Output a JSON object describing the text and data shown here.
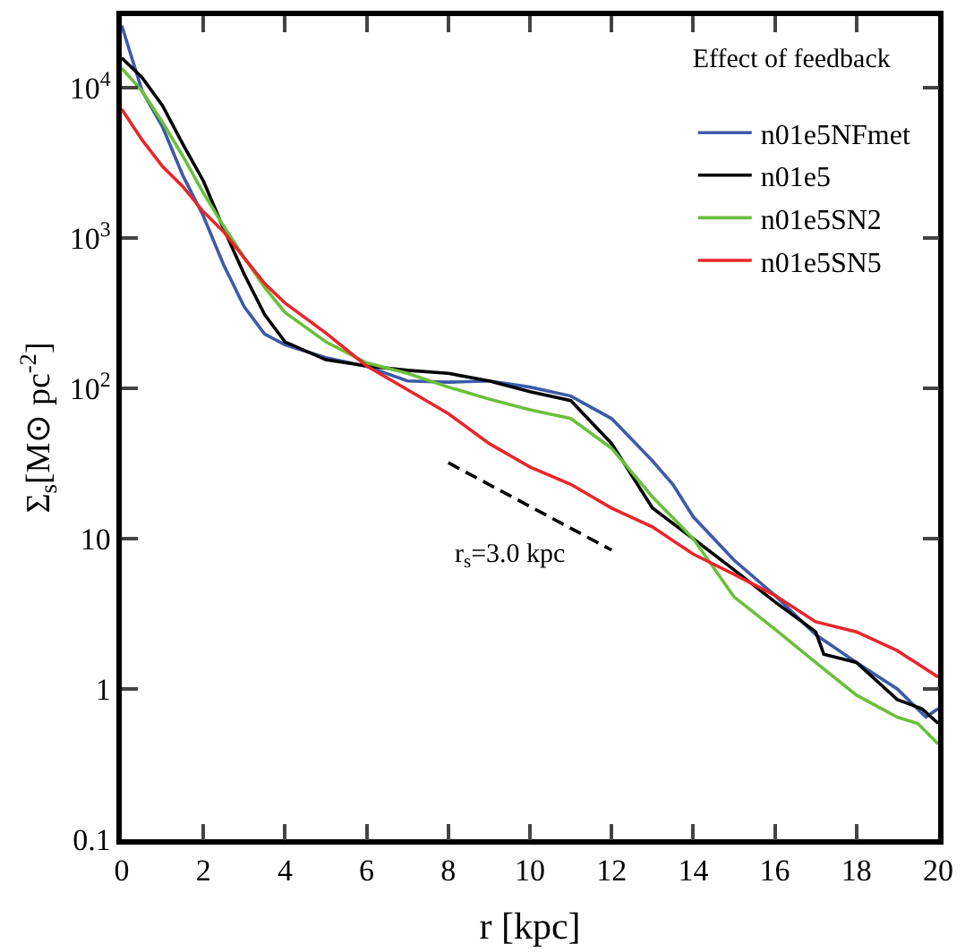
{
  "chart_data": {
    "type": "line",
    "xlabel": "r [kpc]",
    "ylabel": "Σ$_{s}$[M⊙ pc$^{-2}$]",
    "legend_title": "Effect of feedback",
    "legend": "top right",
    "grid": false,
    "log": "y",
    "marker": "none",
    "xlim": [
      0,
      20
    ],
    "xticks": [
      0,
      2,
      4,
      6,
      8,
      10,
      12,
      14,
      16,
      18,
      20
    ],
    "ylim": [
      0.1,
      30000
    ],
    "yticks": [
      0.1,
      1,
      10,
      {
        "value": 100,
        "label": "10$^{2}$"
      },
      {
        "value": 1000,
        "label": "10$^{3}$"
      },
      {
        "value": 10000,
        "label": "10$^{4}$"
      }
    ],
    "annotations": [
      "r$_{s}$=3.0 kpc"
    ],
    "series": [
      {
        "name": "n01e5NFmet",
        "color": "#3c5aa8",
        "line_style": "solid",
        "x": [
          0,
          0.5,
          1,
          1.5,
          2,
          2.5,
          3,
          3.5,
          4,
          5,
          6,
          7,
          8,
          9,
          10,
          11,
          12,
          13,
          13.5,
          14,
          15,
          16,
          17,
          18,
          19,
          19.7,
          20
        ],
        "values": [
          26000,
          9500,
          5500,
          2600,
          1400,
          660,
          350,
          230,
          195,
          160,
          140,
          112,
          110,
          112,
          102,
          89,
          63,
          33,
          23,
          14,
          7.2,
          4.2,
          2.3,
          1.5,
          1.0,
          0.65,
          0.74
        ]
      },
      {
        "name": "n01e5",
        "color": "#000000",
        "line_style": "solid",
        "x": [
          0,
          0.5,
          1,
          1.5,
          2,
          2.5,
          3,
          3.5,
          4,
          5,
          6,
          7,
          8,
          9,
          10,
          11,
          12,
          13,
          14,
          15,
          16,
          17,
          17.2,
          18,
          19,
          19.6,
          20
        ],
        "values": [
          15800,
          11700,
          7600,
          4200,
          2400,
          1150,
          575,
          310,
          204,
          155,
          141,
          132,
          126,
          112,
          95,
          83,
          43,
          16,
          10,
          6.2,
          3.8,
          2.4,
          1.7,
          1.5,
          0.85,
          0.74,
          0.59
        ]
      },
      {
        "name": "n01e5SN2",
        "color": "#6cbf3c",
        "line_style": "solid",
        "x": [
          0,
          0.5,
          1,
          1.5,
          2,
          2.5,
          3,
          3.5,
          4,
          5,
          6,
          7,
          8,
          9,
          10,
          11,
          12,
          13,
          14,
          15,
          16,
          17,
          18,
          19,
          19.5,
          20
        ],
        "values": [
          13500,
          9500,
          5900,
          3500,
          2000,
          1200,
          740,
          470,
          320,
          204,
          148,
          126,
          102,
          85,
          72,
          63,
          40,
          19,
          10,
          4.1,
          2.5,
          1.5,
          0.91,
          0.65,
          0.59,
          0.43
        ]
      },
      {
        "name": "n01e5SN5",
        "color": "#e8262a",
        "line_style": "solid",
        "x": [
          0,
          0.5,
          1,
          1.5,
          2,
          2.5,
          3,
          3.5,
          4,
          5,
          6,
          7,
          8,
          9,
          10,
          11,
          12,
          13,
          14,
          15,
          16,
          17,
          18,
          19,
          20
        ],
        "values": [
          7200,
          4500,
          3000,
          2200,
          1500,
          1100,
          740,
          500,
          370,
          234,
          141,
          98,
          68,
          43,
          30,
          23,
          16,
          12,
          7.9,
          5.8,
          4.2,
          2.8,
          2.4,
          1.8,
          1.2
        ]
      },
      {
        "color": "#000000",
        "line_style": "dashed",
        "x": [
          8,
          12
        ],
        "values": [
          32,
          8.4
        ]
      }
    ]
  }
}
